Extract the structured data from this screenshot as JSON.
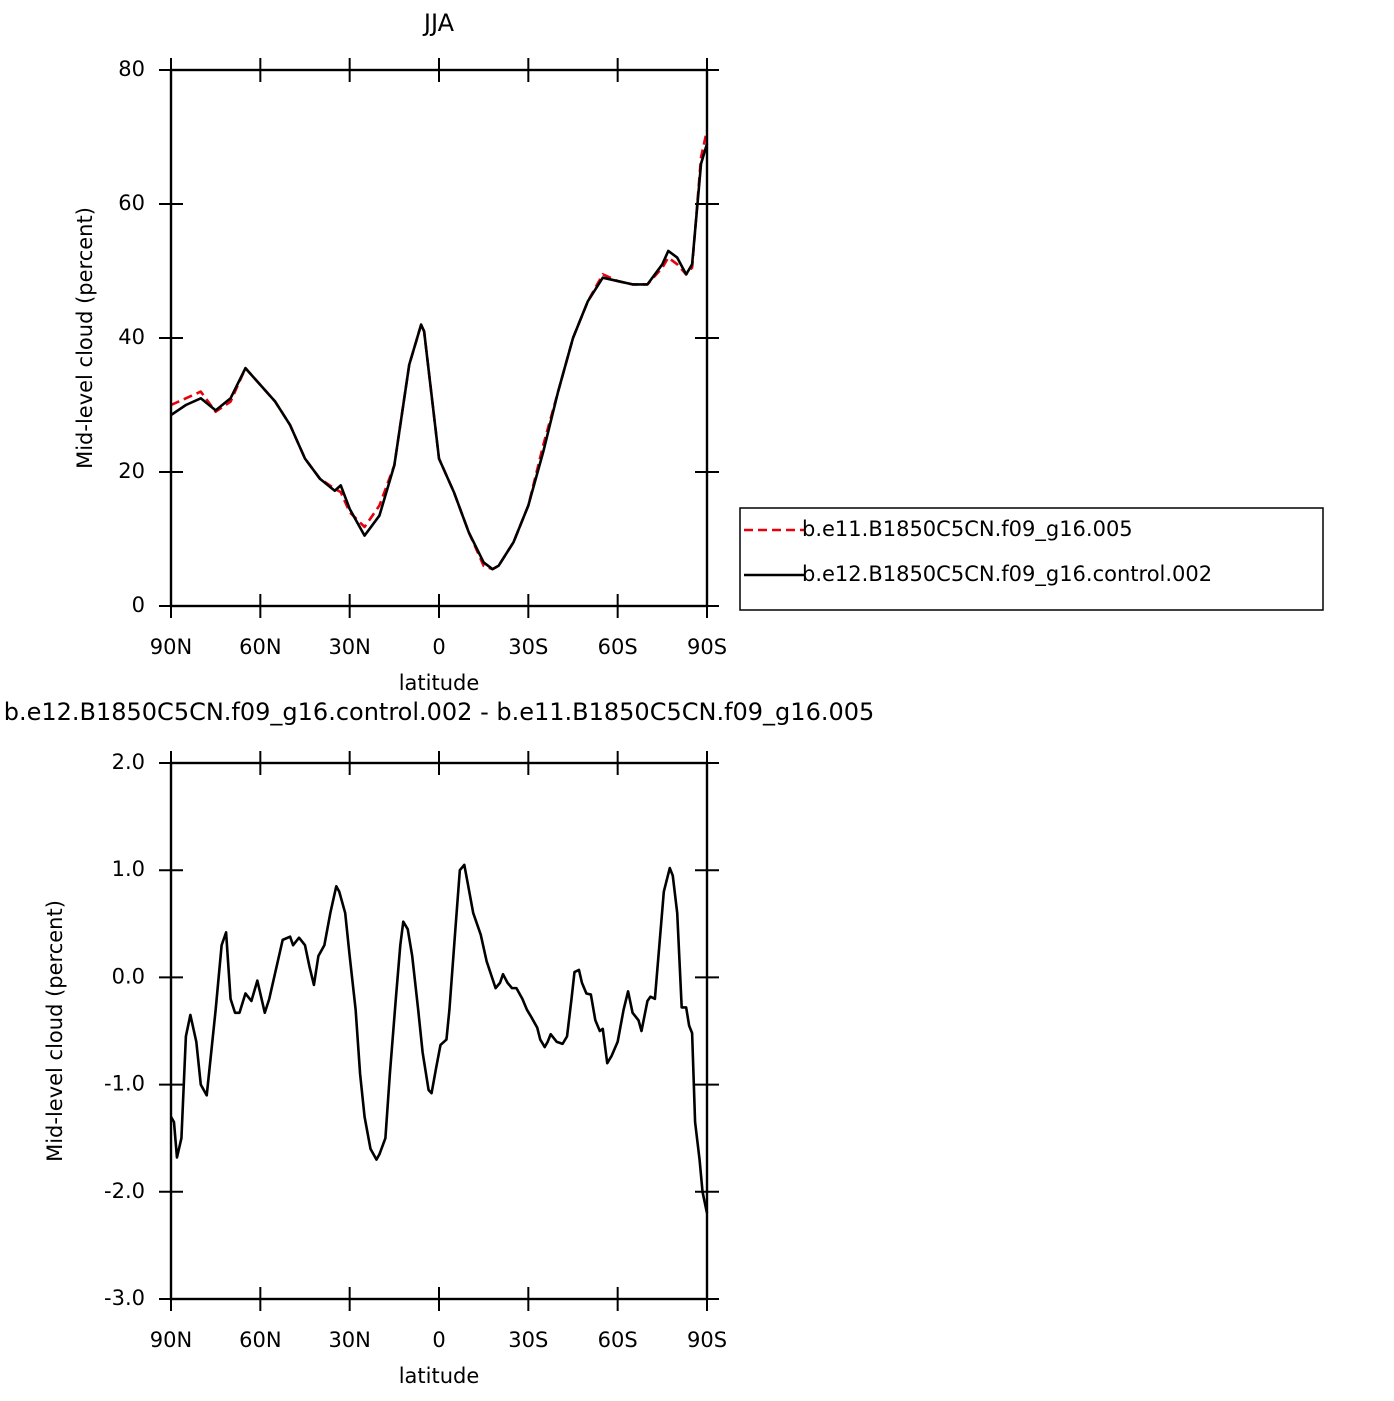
{
  "chart_data": [
    {
      "type": "line",
      "title": "JJA",
      "x_label": "latitude",
      "y_label": "Mid-level cloud (percent)",
      "x": [
        90,
        85,
        80,
        75,
        70,
        65,
        60,
        55,
        50,
        45,
        40,
        35,
        33,
        30,
        25,
        20,
        15,
        10,
        6,
        5,
        0,
        -5,
        -10,
        -15,
        -18,
        -20,
        -25,
        -30,
        -35,
        -40,
        -45,
        -50,
        -55,
        -60,
        -65,
        -70,
        -75,
        -77,
        -80,
        -83,
        -85,
        -88,
        -90
      ],
      "series": [
        {
          "name": "b.e11.B1850C5CN.f09_g16.005",
          "color": "#e8000b",
          "style": "dashed",
          "values": [
            30,
            31,
            32,
            29,
            30.5,
            35.5,
            33,
            30.5,
            27,
            22,
            19,
            17.5,
            17,
            14,
            11.8,
            15,
            21,
            36,
            42,
            41,
            22,
            17,
            11,
            6,
            5.5,
            6,
            9.5,
            15,
            24,
            32,
            40,
            45.5,
            49.5,
            48.5,
            48,
            48,
            50.5,
            52,
            51,
            49.5,
            50.5,
            67,
            71
          ]
        },
        {
          "name": "b.e12.B1850C5CN.f09_g16.control.002",
          "color": "#000000",
          "style": "solid",
          "values": [
            28.5,
            30,
            31,
            29.2,
            31,
            35.5,
            33,
            30.5,
            27,
            22,
            19,
            17.2,
            18,
            14.5,
            10.5,
            13.5,
            21,
            36,
            42,
            41,
            22,
            17,
            11,
            6.5,
            5.5,
            6,
            9.5,
            15,
            23,
            32,
            40,
            45.5,
            49,
            48.5,
            48,
            48,
            51,
            53,
            52,
            49.5,
            51,
            66,
            69
          ]
        }
      ],
      "xlim": [
        90,
        -90
      ],
      "xticks": [
        {
          "value": 90,
          "label": "90N"
        },
        {
          "value": 60,
          "label": "60N"
        },
        {
          "value": 30,
          "label": "30N"
        },
        0,
        {
          "value": -30,
          "label": "30S"
        },
        {
          "value": -60,
          "label": "60S"
        },
        {
          "value": -90,
          "label": "90S"
        }
      ],
      "ylim": [
        0,
        80
      ],
      "yticks": [
        0,
        20,
        40,
        60,
        80
      ],
      "legend": "right"
    },
    {
      "type": "line",
      "title": "b.e12.B1850C5CN.f09_g16.control.002 - b.e11.B1850C5CN.f09_g16.005",
      "x_label": "latitude",
      "y_label": "Mid-level cloud (percent)",
      "x": [
        90,
        89,
        88,
        86.5,
        85,
        83.5,
        81.5,
        80,
        78,
        76.5,
        75,
        73,
        71.5,
        70,
        68.5,
        67,
        65,
        63,
        61,
        58.5,
        57,
        52.5,
        50,
        49,
        47,
        45,
        43.5,
        42,
        40.5,
        38.5,
        36.5,
        34.5,
        33.5,
        31.5,
        30,
        28,
        26.5,
        25,
        23,
        21,
        20,
        18,
        16.5,
        14.5,
        13,
        12,
        10.5,
        9,
        7,
        5.5,
        3.5,
        2.5,
        1,
        -0.5,
        -2.5,
        -3.5,
        -5.5,
        -7,
        -8.5,
        -9.5,
        -11.5,
        -14,
        -16,
        -19,
        -20.5,
        -21.5,
        -23,
        -24.5,
        -26,
        -28,
        -29.5,
        -31,
        -33,
        -34,
        -35.5,
        -36.5,
        -37.5,
        -39.5,
        -41.5,
        -43,
        -44.5,
        -45.5,
        -47,
        -48,
        -49.5,
        -51,
        -52.5,
        -54,
        -55,
        -56.5,
        -58,
        -60,
        -62,
        -63.5,
        -65,
        -67,
        -68,
        -70,
        -71,
        -72.5,
        -74,
        -75.5,
        -77.5,
        -78.5,
        -80,
        -81.5,
        -83,
        -84,
        -85,
        -86,
        -87.5,
        -88.5,
        -90
      ],
      "series": [
        {
          "name": "difference",
          "color": "#000000",
          "style": "solid",
          "values": [
            -1.3,
            -1.35,
            -1.68,
            -1.5,
            -0.55,
            -0.35,
            -0.6,
            -1.0,
            -1.1,
            -0.7,
            -0.3,
            0.3,
            0.42,
            -0.2,
            -0.33,
            -0.33,
            -0.15,
            -0.22,
            -0.03,
            -0.33,
            -0.2,
            0.35,
            0.38,
            0.3,
            0.37,
            0.3,
            0.1,
            -0.07,
            0.2,
            0.3,
            0.6,
            0.85,
            0.8,
            0.6,
            0.2,
            -0.3,
            -0.9,
            -1.3,
            -1.6,
            -1.7,
            -1.65,
            -1.5,
            -0.9,
            -0.2,
            0.3,
            0.52,
            0.45,
            0.2,
            -0.3,
            -0.7,
            -1.05,
            -1.08,
            -0.85,
            -0.63,
            -0.58,
            -0.3,
            0.45,
            1.0,
            1.05,
            0.9,
            0.6,
            0.4,
            0.15,
            -0.1,
            -0.05,
            0.03,
            -0.05,
            -0.1,
            -0.1,
            -0.2,
            -0.3,
            -0.37,
            -0.47,
            -0.58,
            -0.65,
            -0.6,
            -0.53,
            -0.6,
            -0.62,
            -0.55,
            -0.2,
            0.05,
            0.07,
            -0.05,
            -0.15,
            -0.16,
            -0.4,
            -0.5,
            -0.48,
            -0.8,
            -0.73,
            -0.6,
            -0.3,
            -0.13,
            -0.33,
            -0.4,
            -0.5,
            -0.22,
            -0.18,
            -0.2,
            0.3,
            0.8,
            1.02,
            0.95,
            0.6,
            -0.28,
            -0.28,
            -0.45,
            -0.52,
            -1.35,
            -1.7,
            -2.0,
            -2.2
          ]
        }
      ],
      "xlim": [
        90,
        -90
      ],
      "xticks": [
        {
          "value": 90,
          "label": "90N"
        },
        {
          "value": 60,
          "label": "60N"
        },
        {
          "value": 30,
          "label": "30N"
        },
        0,
        {
          "value": -30,
          "label": "30S"
        },
        {
          "value": -60,
          "label": "60S"
        },
        {
          "value": -90,
          "label": "90S"
        }
      ],
      "ylim": [
        -3,
        2
      ],
      "yticks": [
        {
          "value": -3,
          "label": "-3.0"
        },
        {
          "value": -2,
          "label": "-2.0"
        },
        {
          "value": -1,
          "label": "-1.0"
        },
        {
          "value": 0,
          "label": "0.0"
        },
        {
          "value": 1,
          "label": "1.0"
        },
        {
          "value": 2,
          "label": "2.0"
        }
      ]
    }
  ]
}
